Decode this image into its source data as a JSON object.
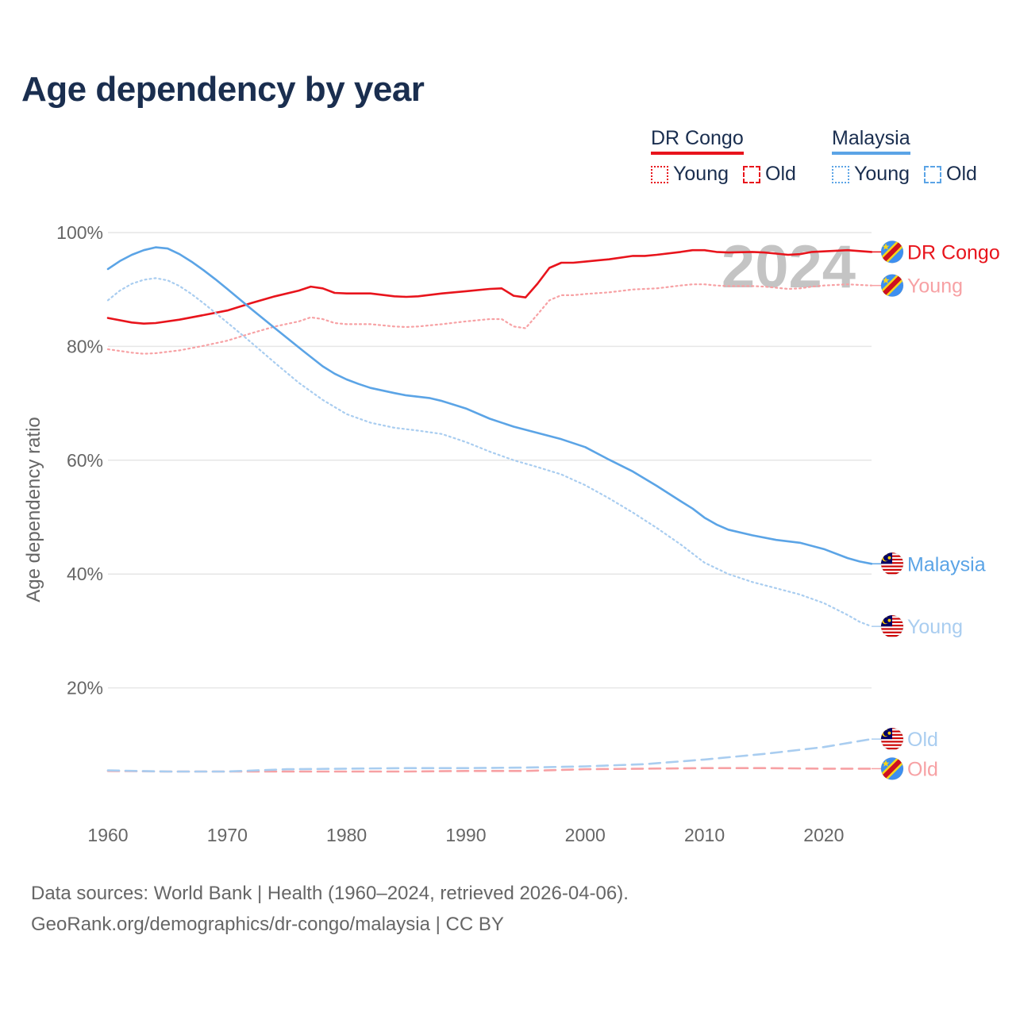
{
  "title": "Age dependency by year",
  "source": {
    "line1": "Data sources: World Bank | Health (1960–2024, retrieved 2026-04-06).",
    "line2": "GeoRank.org/demographics/dr-congo/malaysia | CC BY"
  },
  "legend": {
    "congo": {
      "name": "DR Congo",
      "young": "Young",
      "old": "Old",
      "color": "#e8141c"
    },
    "malaysia": {
      "name": "Malaysia",
      "young": "Young",
      "old": "Old",
      "color": "#5ba4e6"
    }
  },
  "colors": {
    "congo": "#e8141c",
    "congo_light": "#f7a1a4",
    "malaysia": "#5ba4e6",
    "malaysia_light": "#a9cdf0",
    "grid": "#e6e6e6",
    "year_watermark": "#c4c4c4"
  },
  "chart_data": {
    "type": "line",
    "title": "Age dependency by year",
    "xlabel": "",
    "ylabel": "Age dependency ratio",
    "xlim": [
      1960,
      2024
    ],
    "ylim": [
      0,
      100
    ],
    "x_ticks": [
      1960,
      1970,
      1980,
      1990,
      2000,
      2010,
      2020
    ],
    "y_ticks": [
      {
        "v": 20,
        "label": "20%"
      },
      {
        "v": 40,
        "label": "40%"
      },
      {
        "v": 60,
        "label": "60%"
      },
      {
        "v": 80,
        "label": "80%"
      },
      {
        "v": 100,
        "label": "100%"
      }
    ],
    "year_watermark": "2024",
    "series": [
      {
        "key": "congo_total",
        "name": "DR Congo",
        "end_label": "DR Congo",
        "color_key": "congo",
        "dash": "solid",
        "flag": "cd",
        "points": [
          [
            1960,
            85.0
          ],
          [
            1962,
            84.2
          ],
          [
            1963,
            84.0
          ],
          [
            1964,
            84.1
          ],
          [
            1966,
            84.7
          ],
          [
            1968,
            85.5
          ],
          [
            1970,
            86.3
          ],
          [
            1972,
            87.6
          ],
          [
            1974,
            88.8
          ],
          [
            1976,
            89.8
          ],
          [
            1977,
            90.5
          ],
          [
            1978,
            90.2
          ],
          [
            1979,
            89.4
          ],
          [
            1980,
            89.3
          ],
          [
            1982,
            89.3
          ],
          [
            1984,
            88.8
          ],
          [
            1985,
            88.7
          ],
          [
            1986,
            88.8
          ],
          [
            1988,
            89.3
          ],
          [
            1990,
            89.7
          ],
          [
            1992,
            90.1
          ],
          [
            1993,
            90.2
          ],
          [
            1994,
            88.9
          ],
          [
            1995,
            88.6
          ],
          [
            1996,
            91.0
          ],
          [
            1997,
            93.8
          ],
          [
            1998,
            94.7
          ],
          [
            1999,
            94.7
          ],
          [
            2000,
            94.9
          ],
          [
            2002,
            95.3
          ],
          [
            2004,
            95.9
          ],
          [
            2005,
            95.9
          ],
          [
            2006,
            96.1
          ],
          [
            2008,
            96.6
          ],
          [
            2009,
            96.9
          ],
          [
            2010,
            96.9
          ],
          [
            2011,
            96.6
          ],
          [
            2012,
            96.5
          ],
          [
            2014,
            96.6
          ],
          [
            2015,
            96.5
          ],
          [
            2016,
            96.3
          ],
          [
            2017,
            96.1
          ],
          [
            2018,
            96.2
          ],
          [
            2019,
            96.6
          ],
          [
            2020,
            96.7
          ],
          [
            2022,
            96.9
          ],
          [
            2024,
            96.6
          ]
        ]
      },
      {
        "key": "congo_young",
        "name": "DR Congo Young",
        "end_label": "Young",
        "color_key": "congo_light",
        "dash": "dotted",
        "flag": "cd",
        "points": [
          [
            1960,
            79.5
          ],
          [
            1962,
            78.9
          ],
          [
            1963,
            78.7
          ],
          [
            1964,
            78.8
          ],
          [
            1966,
            79.3
          ],
          [
            1968,
            80.1
          ],
          [
            1970,
            81.0
          ],
          [
            1972,
            82.3
          ],
          [
            1974,
            83.5
          ],
          [
            1976,
            84.4
          ],
          [
            1977,
            85.1
          ],
          [
            1978,
            84.8
          ],
          [
            1979,
            84.1
          ],
          [
            1980,
            83.9
          ],
          [
            1982,
            83.9
          ],
          [
            1984,
            83.5
          ],
          [
            1985,
            83.4
          ],
          [
            1986,
            83.5
          ],
          [
            1988,
            83.9
          ],
          [
            1990,
            84.4
          ],
          [
            1992,
            84.8
          ],
          [
            1993,
            84.8
          ],
          [
            1994,
            83.5
          ],
          [
            1995,
            83.2
          ],
          [
            1996,
            85.6
          ],
          [
            1997,
            88.1
          ],
          [
            1998,
            89.0
          ],
          [
            1999,
            89.0
          ],
          [
            2000,
            89.2
          ],
          [
            2002,
            89.5
          ],
          [
            2004,
            90.0
          ],
          [
            2006,
            90.2
          ],
          [
            2008,
            90.7
          ],
          [
            2009,
            90.9
          ],
          [
            2010,
            90.9
          ],
          [
            2011,
            90.7
          ],
          [
            2012,
            90.6
          ],
          [
            2014,
            90.6
          ],
          [
            2015,
            90.5
          ],
          [
            2016,
            90.3
          ],
          [
            2017,
            90.1
          ],
          [
            2018,
            90.2
          ],
          [
            2019,
            90.5
          ],
          [
            2020,
            90.7
          ],
          [
            2022,
            90.9
          ],
          [
            2024,
            90.7
          ]
        ]
      },
      {
        "key": "congo_old",
        "name": "DR Congo Old",
        "end_label": "Old",
        "color_key": "congo_light",
        "dash": "dashed",
        "flag": "cd",
        "points": [
          [
            1960,
            5.4
          ],
          [
            1965,
            5.3
          ],
          [
            1970,
            5.3
          ],
          [
            1975,
            5.3
          ],
          [
            1980,
            5.3
          ],
          [
            1985,
            5.3
          ],
          [
            1990,
            5.4
          ],
          [
            1995,
            5.4
          ],
          [
            2000,
            5.7
          ],
          [
            2005,
            5.8
          ],
          [
            2010,
            5.9
          ],
          [
            2015,
            5.9
          ],
          [
            2020,
            5.8
          ],
          [
            2024,
            5.8
          ]
        ]
      },
      {
        "key": "malaysia_total",
        "name": "Malaysia",
        "end_label": "Malaysia",
        "color_key": "malaysia",
        "dash": "solid",
        "flag": "my",
        "points": [
          [
            1960,
            93.6
          ],
          [
            1961,
            95.0
          ],
          [
            1962,
            96.1
          ],
          [
            1963,
            96.9
          ],
          [
            1964,
            97.4
          ],
          [
            1965,
            97.2
          ],
          [
            1966,
            96.2
          ],
          [
            1967,
            94.9
          ],
          [
            1968,
            93.4
          ],
          [
            1969,
            91.8
          ],
          [
            1970,
            90.1
          ],
          [
            1972,
            86.6
          ],
          [
            1974,
            83.2
          ],
          [
            1976,
            79.8
          ],
          [
            1978,
            76.5
          ],
          [
            1979,
            75.2
          ],
          [
            1980,
            74.2
          ],
          [
            1981,
            73.4
          ],
          [
            1982,
            72.7
          ],
          [
            1984,
            71.8
          ],
          [
            1985,
            71.4
          ],
          [
            1987,
            70.9
          ],
          [
            1988,
            70.4
          ],
          [
            1990,
            69.1
          ],
          [
            1992,
            67.3
          ],
          [
            1994,
            65.9
          ],
          [
            1996,
            64.8
          ],
          [
            1998,
            63.7
          ],
          [
            2000,
            62.3
          ],
          [
            2002,
            60.1
          ],
          [
            2004,
            58.0
          ],
          [
            2006,
            55.5
          ],
          [
            2008,
            52.8
          ],
          [
            2009,
            51.5
          ],
          [
            2010,
            49.9
          ],
          [
            2011,
            48.7
          ],
          [
            2012,
            47.8
          ],
          [
            2014,
            46.8
          ],
          [
            2016,
            46.0
          ],
          [
            2018,
            45.5
          ],
          [
            2020,
            44.4
          ],
          [
            2022,
            42.8
          ],
          [
            2023,
            42.2
          ],
          [
            2024,
            41.8
          ]
        ]
      },
      {
        "key": "malaysia_young",
        "name": "Malaysia Young",
        "end_label": "Young",
        "color_key": "malaysia_light",
        "dash": "dotted",
        "flag": "my",
        "points": [
          [
            1960,
            88.1
          ],
          [
            1961,
            89.8
          ],
          [
            1962,
            91.0
          ],
          [
            1963,
            91.7
          ],
          [
            1964,
            92.0
          ],
          [
            1965,
            91.6
          ],
          [
            1966,
            90.6
          ],
          [
            1967,
            89.2
          ],
          [
            1968,
            87.6
          ],
          [
            1969,
            85.9
          ],
          [
            1970,
            84.2
          ],
          [
            1972,
            80.7
          ],
          [
            1974,
            77.1
          ],
          [
            1976,
            73.6
          ],
          [
            1978,
            70.6
          ],
          [
            1980,
            68.1
          ],
          [
            1982,
            66.6
          ],
          [
            1984,
            65.7
          ],
          [
            1986,
            65.2
          ],
          [
            1988,
            64.6
          ],
          [
            1990,
            63.2
          ],
          [
            1992,
            61.5
          ],
          [
            1994,
            60.0
          ],
          [
            1996,
            58.8
          ],
          [
            1998,
            57.5
          ],
          [
            2000,
            55.6
          ],
          [
            2002,
            53.3
          ],
          [
            2004,
            50.8
          ],
          [
            2006,
            48.1
          ],
          [
            2008,
            45.2
          ],
          [
            2010,
            42.0
          ],
          [
            2012,
            40.0
          ],
          [
            2014,
            38.6
          ],
          [
            2016,
            37.5
          ],
          [
            2018,
            36.4
          ],
          [
            2020,
            34.9
          ],
          [
            2022,
            32.8
          ],
          [
            2023,
            31.6
          ],
          [
            2024,
            30.8
          ]
        ]
      },
      {
        "key": "malaysia_old",
        "name": "Malaysia Old",
        "end_label": "Old",
        "color_key": "malaysia_light",
        "dash": "dashed",
        "flag": "my",
        "points": [
          [
            1960,
            5.5
          ],
          [
            1965,
            5.3
          ],
          [
            1970,
            5.3
          ],
          [
            1975,
            5.7
          ],
          [
            1980,
            5.8
          ],
          [
            1985,
            5.9
          ],
          [
            1990,
            5.9
          ],
          [
            1995,
            6.0
          ],
          [
            2000,
            6.2
          ],
          [
            2005,
            6.6
          ],
          [
            2010,
            7.4
          ],
          [
            2015,
            8.4
          ],
          [
            2020,
            9.6
          ],
          [
            2024,
            11.0
          ]
        ]
      }
    ]
  }
}
